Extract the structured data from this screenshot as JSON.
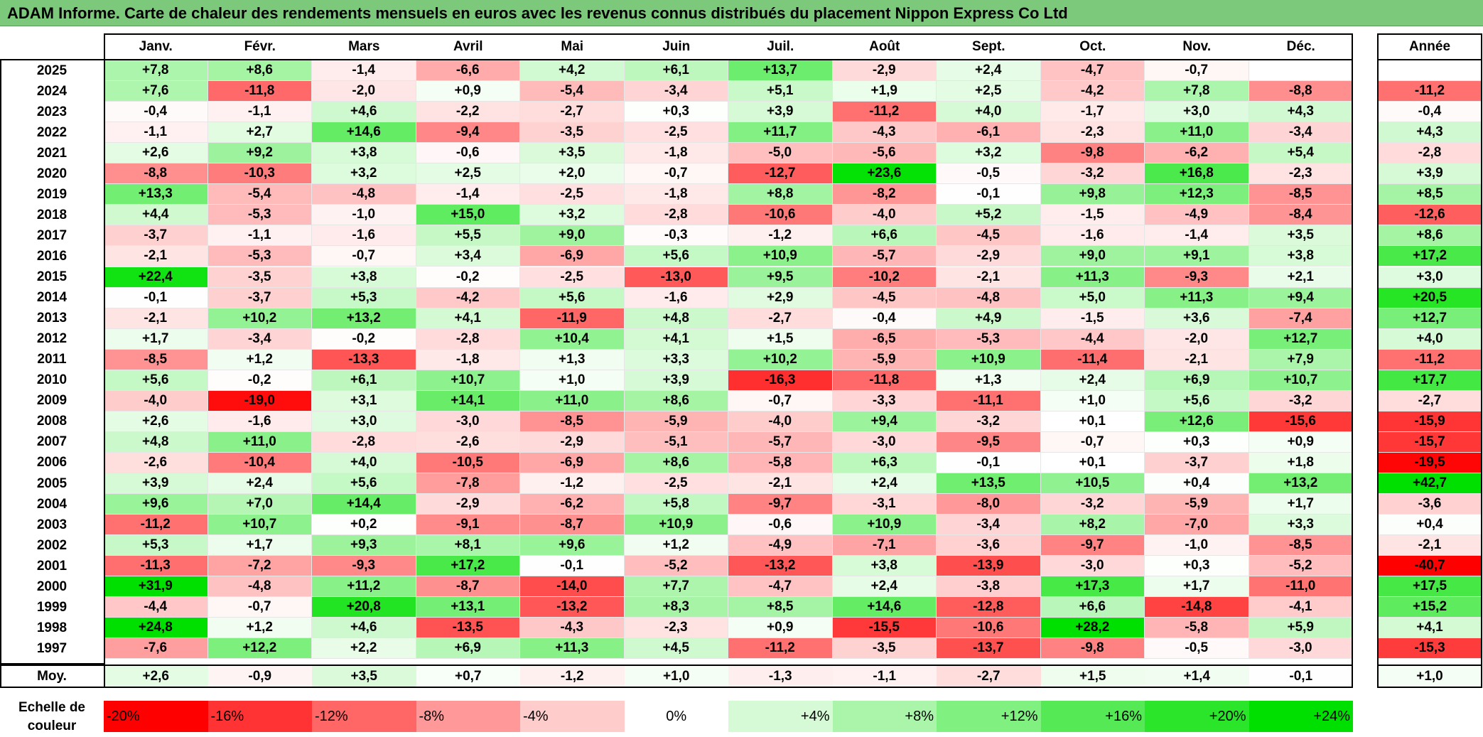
{
  "title": "ADAM Informe. Carte de chaleur des rendements mensuels en euros avec les revenus connus distribués du placement Nippon Express Co Ltd",
  "colors": {
    "title_bar": "#7cc97c",
    "negative_max": "#ff0000",
    "neutral": "#ffffff",
    "positive_max": "#00e000"
  },
  "chart_data": {
    "type": "heatmap",
    "title": "ADAM Informe. Carte de chaleur des rendements mensuels en euros avec les revenus connus distribués du placement Nippon Express Co Ltd",
    "months": [
      "Janv.",
      "Févr.",
      "Mars",
      "Avril",
      "Mai",
      "Juin",
      "Juil.",
      "Août",
      "Sept.",
      "Oct.",
      "Nov.",
      "Déc."
    ],
    "annual_header": "Année",
    "rows": [
      {
        "year": "2025",
        "months": [
          "+7,8",
          "+8,6",
          "-1,4",
          "-6,6",
          "+4,2",
          "+6,1",
          "+13,7",
          "-2,9",
          "+2,4",
          "-4,7",
          "-0,7",
          ""
        ],
        "annual": ""
      },
      {
        "year": "2024",
        "months": [
          "+7,6",
          "-11,8",
          "-2,0",
          "+0,9",
          "-5,4",
          "-3,4",
          "+5,1",
          "+1,9",
          "+2,5",
          "-4,2",
          "+7,8",
          "-8,8"
        ],
        "annual": "-11,2"
      },
      {
        "year": "2023",
        "months": [
          "-0,4",
          "-1,1",
          "+4,6",
          "-2,2",
          "-2,7",
          "+0,3",
          "+3,9",
          "-11,2",
          "+4,0",
          "-1,7",
          "+3,0",
          "+4,3"
        ],
        "annual": "-0,4"
      },
      {
        "year": "2022",
        "months": [
          "-1,1",
          "+2,7",
          "+14,6",
          "-9,4",
          "-3,5",
          "-2,5",
          "+11,7",
          "-4,3",
          "-6,1",
          "-2,3",
          "+11,0",
          "-3,4"
        ],
        "annual": "+4,3"
      },
      {
        "year": "2021",
        "months": [
          "+2,6",
          "+9,2",
          "+3,8",
          "-0,6",
          "+3,5",
          "-1,8",
          "-5,0",
          "-5,6",
          "+3,2",
          "-9,8",
          "-6,2",
          "+5,4"
        ],
        "annual": "-2,8"
      },
      {
        "year": "2020",
        "months": [
          "-8,8",
          "-10,3",
          "+3,2",
          "+2,5",
          "+2,0",
          "-0,7",
          "-12,7",
          "+23,6",
          "-0,5",
          "-3,2",
          "+16,8",
          "-2,3"
        ],
        "annual": "+3,9"
      },
      {
        "year": "2019",
        "months": [
          "+13,3",
          "-5,4",
          "-4,8",
          "-1,4",
          "-2,5",
          "-1,8",
          "+8,8",
          "-8,2",
          "-0,1",
          "+9,8",
          "+12,3",
          "-8,5"
        ],
        "annual": "+8,5"
      },
      {
        "year": "2018",
        "months": [
          "+4,4",
          "-5,3",
          "-1,0",
          "+15,0",
          "+3,2",
          "-2,8",
          "-10,6",
          "-4,0",
          "+5,2",
          "-1,5",
          "-4,9",
          "-8,4"
        ],
        "annual": "-12,6"
      },
      {
        "year": "2017",
        "months": [
          "-3,7",
          "-1,1",
          "-1,6",
          "+5,5",
          "+9,0",
          "-0,3",
          "-1,2",
          "+6,6",
          "-4,5",
          "-1,6",
          "-1,4",
          "+3,5"
        ],
        "annual": "+8,6"
      },
      {
        "year": "2016",
        "months": [
          "-2,1",
          "-5,3",
          "-0,7",
          "+3,4",
          "-6,9",
          "+5,6",
          "+10,9",
          "-5,7",
          "-2,9",
          "+9,0",
          "+9,1",
          "+3,8"
        ],
        "annual": "+17,2"
      },
      {
        "year": "2015",
        "months": [
          "+22,4",
          "-3,5",
          "+3,8",
          "-0,2",
          "-2,5",
          "-13,0",
          "+9,5",
          "-10,2",
          "-2,1",
          "+11,3",
          "-9,3",
          "+2,1"
        ],
        "annual": "+3,0"
      },
      {
        "year": "2014",
        "months": [
          "-0,1",
          "-3,7",
          "+5,3",
          "-4,2",
          "+5,6",
          "-1,6",
          "+2,9",
          "-4,5",
          "-4,8",
          "+5,0",
          "+11,3",
          "+9,4"
        ],
        "annual": "+20,5"
      },
      {
        "year": "2013",
        "months": [
          "-2,1",
          "+10,2",
          "+13,2",
          "+4,1",
          "-11,9",
          "+4,8",
          "-2,7",
          "-0,4",
          "+4,9",
          "-1,5",
          "+3,6",
          "-7,4"
        ],
        "annual": "+12,7"
      },
      {
        "year": "2012",
        "months": [
          "+1,7",
          "-3,4",
          "-0,2",
          "-2,8",
          "+10,4",
          "+4,1",
          "+1,5",
          "-6,5",
          "-5,3",
          "-4,4",
          "-2,0",
          "+12,7"
        ],
        "annual": "+4,0"
      },
      {
        "year": "2011",
        "months": [
          "-8,5",
          "+1,2",
          "-13,3",
          "-1,8",
          "+1,3",
          "+3,3",
          "+10,2",
          "-5,9",
          "+10,9",
          "-11,4",
          "-2,1",
          "+7,9"
        ],
        "annual": "-11,2"
      },
      {
        "year": "2010",
        "months": [
          "+5,6",
          "-0,2",
          "+6,1",
          "+10,7",
          "+1,0",
          "+3,9",
          "-16,3",
          "-11,8",
          "+1,3",
          "+2,4",
          "+6,9",
          "+10,7"
        ],
        "annual": "+17,7"
      },
      {
        "year": "2009",
        "months": [
          "-4,0",
          "-19,0",
          "+3,1",
          "+14,1",
          "+11,0",
          "+8,6",
          "-0,7",
          "-3,3",
          "-11,1",
          "+1,0",
          "+5,6",
          "-3,2"
        ],
        "annual": "-2,7"
      },
      {
        "year": "2008",
        "months": [
          "+2,6",
          "-1,6",
          "+3,0",
          "-3,0",
          "-8,5",
          "-5,9",
          "-4,0",
          "+9,4",
          "-3,2",
          "+0,1",
          "+12,6",
          "-15,6"
        ],
        "annual": "-15,9"
      },
      {
        "year": "2007",
        "months": [
          "+4,8",
          "+11,0",
          "-2,8",
          "-2,6",
          "-2,9",
          "-5,1",
          "-5,7",
          "-3,0",
          "-9,5",
          "-0,7",
          "+0,3",
          "+0,9"
        ],
        "annual": "-15,7"
      },
      {
        "year": "2006",
        "months": [
          "-2,6",
          "-10,4",
          "+4,0",
          "-10,5",
          "-6,9",
          "+8,6",
          "-5,8",
          "+6,3",
          "-0,1",
          "+0,1",
          "-3,7",
          "+1,8"
        ],
        "annual": "-19,5"
      },
      {
        "year": "2005",
        "months": [
          "+3,9",
          "+2,4",
          "+5,6",
          "-7,8",
          "-1,2",
          "-2,5",
          "-2,1",
          "+2,4",
          "+13,5",
          "+10,5",
          "+0,4",
          "+13,2"
        ],
        "annual": "+42,7"
      },
      {
        "year": "2004",
        "months": [
          "+9,6",
          "+7,0",
          "+14,4",
          "-2,9",
          "-6,2",
          "+5,8",
          "-9,7",
          "-3,1",
          "-8,0",
          "-3,2",
          "-5,9",
          "+1,7"
        ],
        "annual": "-3,6"
      },
      {
        "year": "2003",
        "months": [
          "-11,2",
          "+10,7",
          "+0,2",
          "-9,1",
          "-8,7",
          "+10,9",
          "-0,6",
          "+10,9",
          "-3,4",
          "+8,2",
          "-7,0",
          "+3,3"
        ],
        "annual": "+0,4"
      },
      {
        "year": "2002",
        "months": [
          "+5,3",
          "+1,7",
          "+9,3",
          "+8,1",
          "+9,6",
          "+1,2",
          "-4,9",
          "-7,1",
          "-3,6",
          "-9,7",
          "-1,0",
          "-8,5"
        ],
        "annual": "-2,1"
      },
      {
        "year": "2001",
        "months": [
          "-11,3",
          "-7,2",
          "-9,3",
          "+17,2",
          "-0,1",
          "-5,2",
          "-13,2",
          "+3,8",
          "-13,9",
          "-3,0",
          "+0,3",
          "-5,2"
        ],
        "annual": "-40,7"
      },
      {
        "year": "2000",
        "months": [
          "+31,9",
          "-4,8",
          "+11,2",
          "-8,7",
          "-14,0",
          "+7,7",
          "-4,7",
          "+2,4",
          "-3,8",
          "+17,3",
          "+1,7",
          "-11,0"
        ],
        "annual": "+17,5"
      },
      {
        "year": "1999",
        "months": [
          "-4,4",
          "-0,7",
          "+20,8",
          "+13,1",
          "-13,2",
          "+8,3",
          "+8,5",
          "+14,6",
          "-12,8",
          "+6,6",
          "-14,8",
          "-4,1"
        ],
        "annual": "+15,2"
      },
      {
        "year": "1998",
        "months": [
          "+24,8",
          "+1,2",
          "+4,6",
          "-13,5",
          "-4,3",
          "-2,3",
          "+0,9",
          "-15,5",
          "-10,6",
          "+28,2",
          "-5,8",
          "+5,9"
        ],
        "annual": "+4,1"
      },
      {
        "year": "1997",
        "months": [
          "-7,6",
          "+12,2",
          "+2,2",
          "+6,9",
          "+11,3",
          "+4,5",
          "-11,2",
          "-3,5",
          "-13,7",
          "-9,8",
          "-0,5",
          "-3,0"
        ],
        "annual": "-15,3"
      }
    ],
    "average": {
      "label": "Moy.",
      "months": [
        "+2,6",
        "-0,9",
        "+3,5",
        "+0,7",
        "-1,2",
        "+1,0",
        "-1,3",
        "-1,1",
        "-2,7",
        "+1,5",
        "+1,4",
        "-0,1"
      ],
      "annual": "+1,0"
    },
    "scale": {
      "label_line1": "Echelle de",
      "label_line2": "couleur",
      "steps": [
        -20,
        -16,
        -12,
        -8,
        -4,
        0,
        4,
        8,
        12,
        16,
        20,
        24
      ],
      "labels": [
        "-20%",
        "-16%",
        "-12%",
        "-8%",
        "-4%",
        "0%",
        "+4%",
        "+8%",
        "+12%",
        "+16%",
        "+20%",
        "+24%"
      ]
    }
  }
}
